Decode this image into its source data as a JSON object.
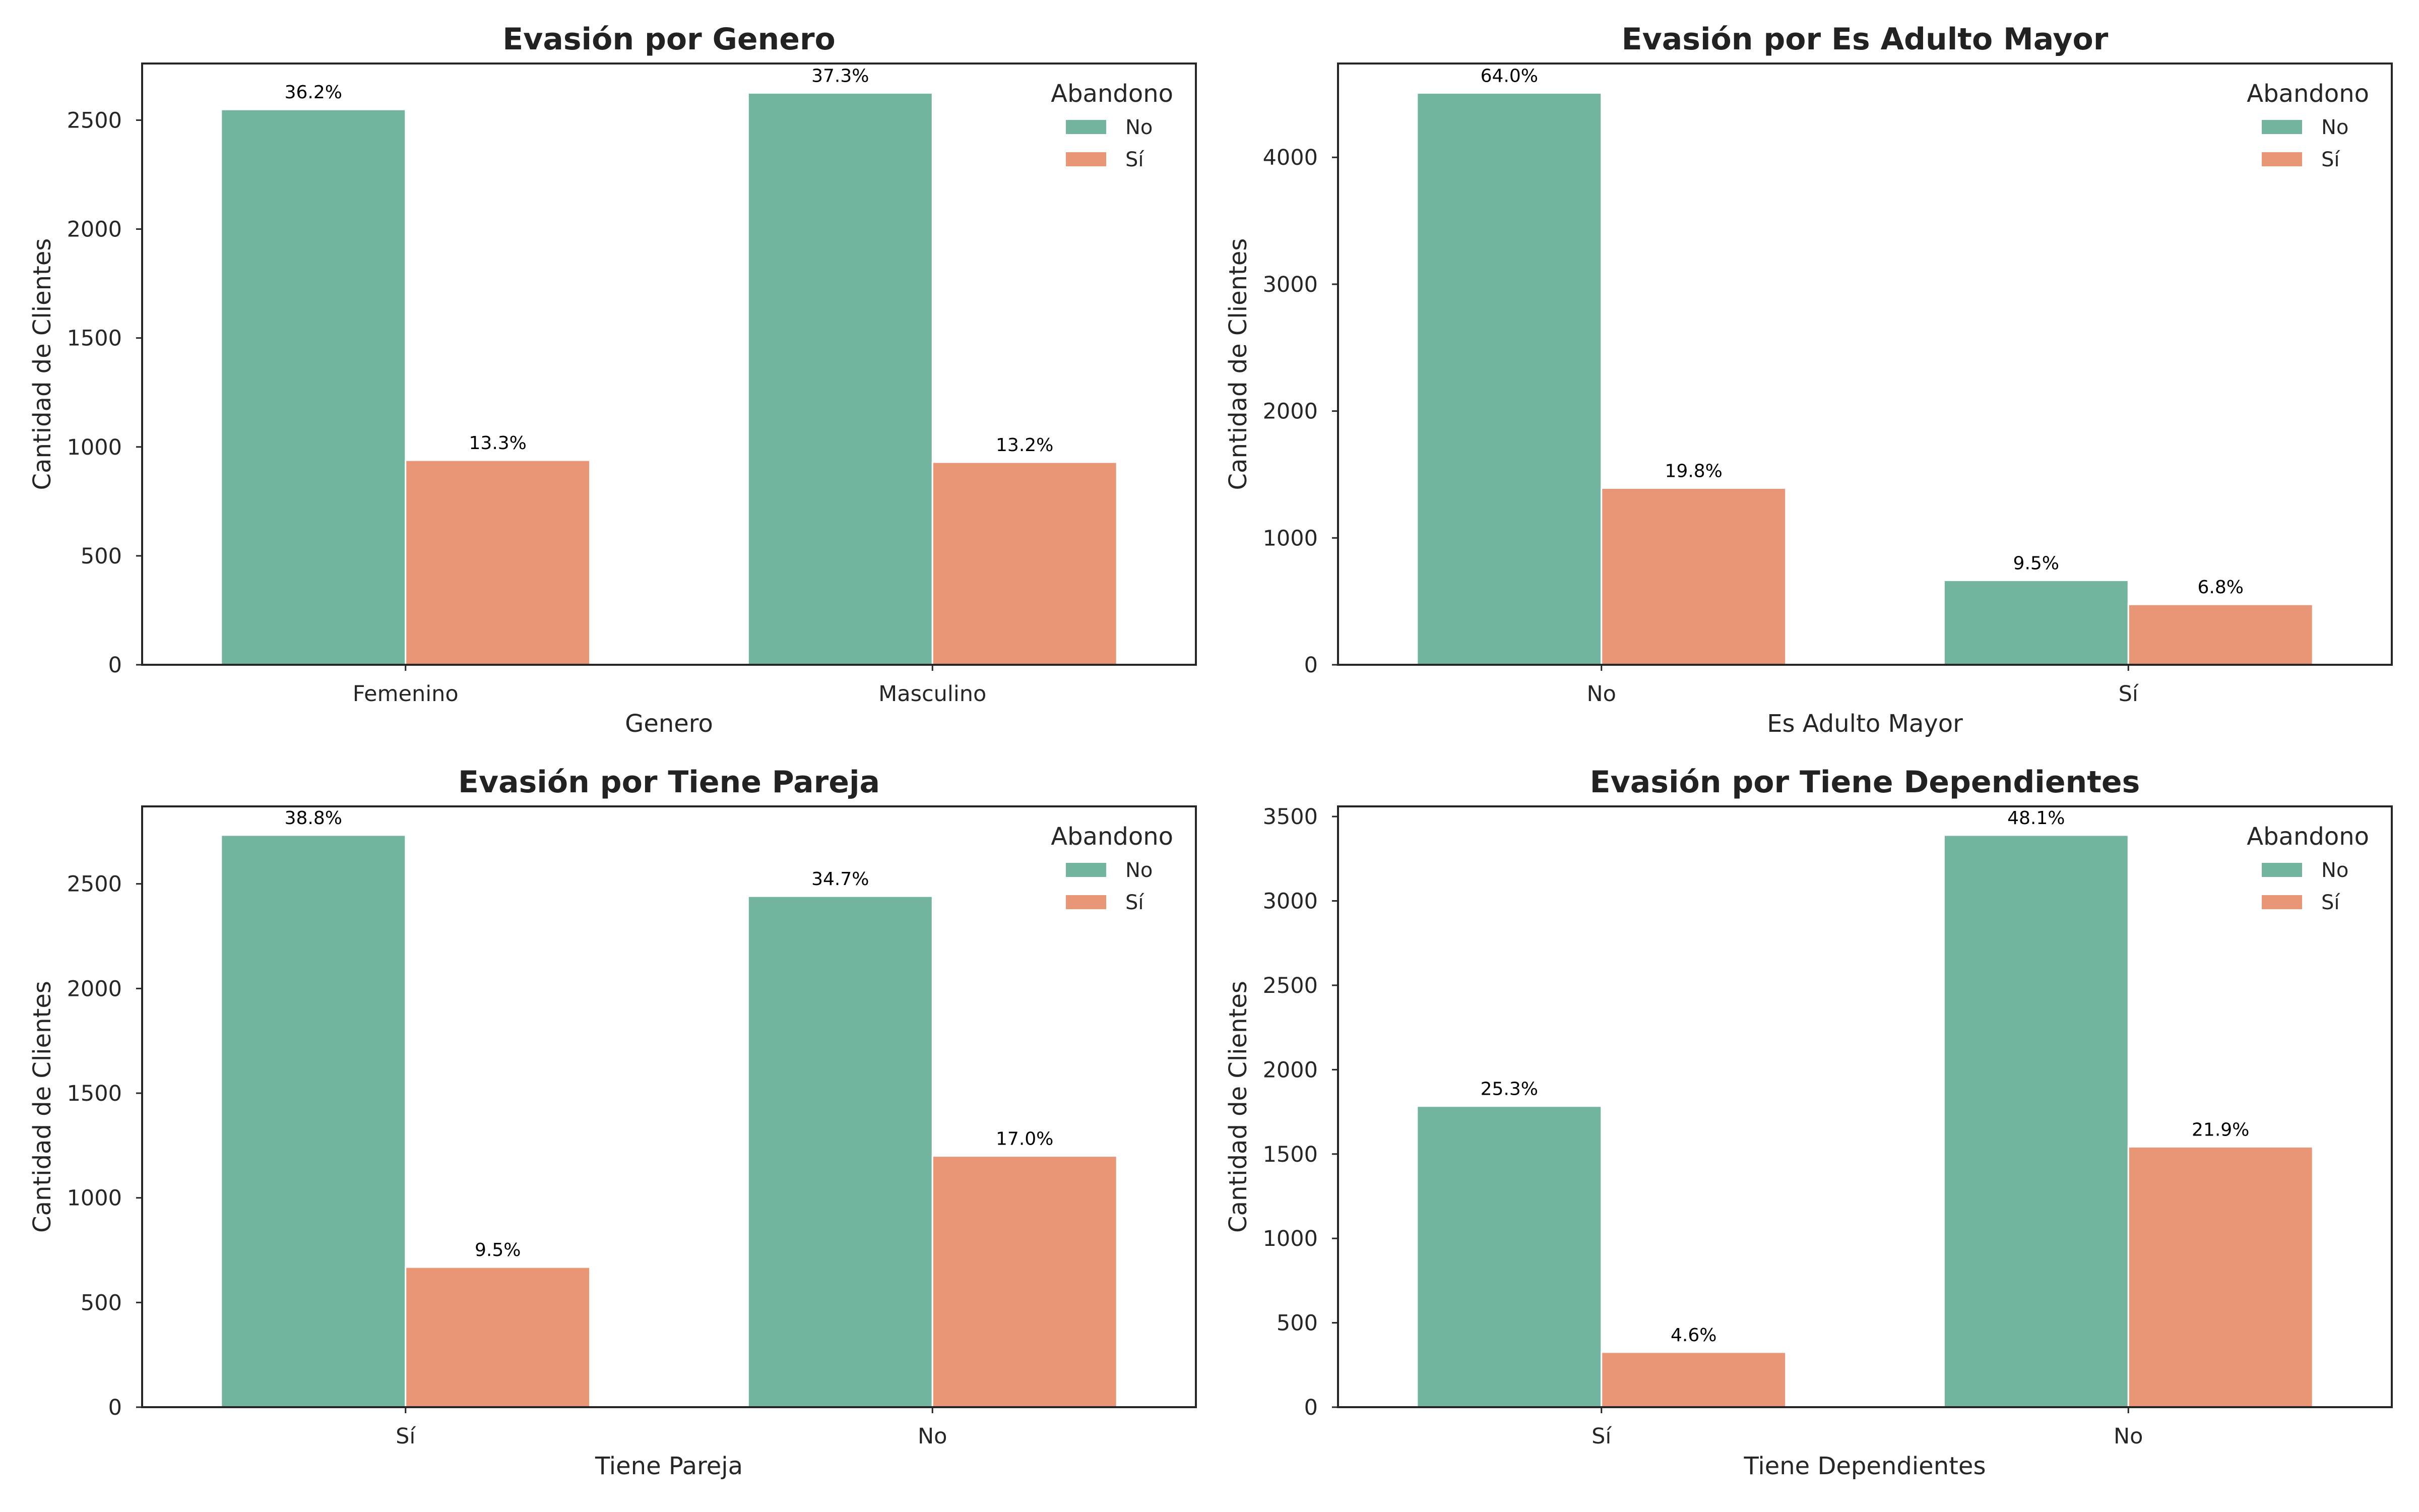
{
  "colors": {
    "No": "#73b49f",
    "Si": "#e89675",
    "axis": "#262626"
  },
  "chart_data": [
    {
      "type": "bar",
      "title": "Evasión por Genero",
      "xlabel": "Genero",
      "ylabel": "Cantidad de Clientes",
      "categories": [
        "Femenino",
        "Masculino"
      ],
      "series": [
        {
          "name": "No",
          "values": [
            2549,
            2625
          ],
          "labels": [
            "36.2%",
            "37.3%"
          ]
        },
        {
          "name": "Sí",
          "values": [
            939,
            930
          ],
          "labels": [
            "13.3%",
            "13.2%"
          ]
        }
      ],
      "ylim": [
        0,
        2760
      ],
      "yticks": [
        0,
        500,
        1000,
        1500,
        2000,
        2500
      ],
      "legend": {
        "title": "Abandono",
        "position": "top-right"
      },
      "grid": false
    },
    {
      "type": "bar",
      "title": "Evasión por Es Adulto Mayor",
      "xlabel": "Es Adulto Mayor",
      "ylabel": "Cantidad de Clientes",
      "categories": [
        "No",
        "Sí"
      ],
      "series": [
        {
          "name": "No",
          "values": [
            4508,
            666
          ],
          "labels": [
            "64.0%",
            "9.5%"
          ]
        },
        {
          "name": "Sí",
          "values": [
            1393,
            476
          ],
          "labels": [
            "19.8%",
            "6.8%"
          ]
        }
      ],
      "ylim": [
        0,
        4740
      ],
      "yticks": [
        0,
        1000,
        2000,
        3000,
        4000
      ],
      "legend": {
        "title": "Abandono",
        "position": "top-right"
      },
      "grid": false
    },
    {
      "type": "bar",
      "title": "Evasión por Tiene Pareja",
      "xlabel": "Tiene Pareja",
      "ylabel": "Cantidad de Clientes",
      "categories": [
        "Sí",
        "No"
      ],
      "series": [
        {
          "name": "No",
          "values": [
            2733,
            2441
          ],
          "labels": [
            "38.8%",
            "34.7%"
          ]
        },
        {
          "name": "Sí",
          "values": [
            669,
            1200
          ],
          "labels": [
            "9.5%",
            "17.0%"
          ]
        }
      ],
      "ylim": [
        0,
        2870
      ],
      "yticks": [
        0,
        500,
        1000,
        1500,
        2000,
        2500
      ],
      "legend": {
        "title": "Abandono",
        "position": "top-right"
      },
      "grid": false
    },
    {
      "type": "bar",
      "title": "Evasión por Tiene Dependientes",
      "xlabel": "Tiene Dependientes",
      "ylabel": "Cantidad de Clientes",
      "categories": [
        "Sí",
        "No"
      ],
      "series": [
        {
          "name": "No",
          "values": [
            1784,
            3390
          ],
          "labels": [
            "25.3%",
            "48.1%"
          ]
        },
        {
          "name": "Sí",
          "values": [
            326,
            1543
          ],
          "labels": [
            "4.6%",
            "21.9%"
          ]
        }
      ],
      "ylim": [
        0,
        3560
      ],
      "yticks": [
        0,
        500,
        1000,
        1500,
        2000,
        2500,
        3000,
        3500
      ],
      "legend": {
        "title": "Abandono",
        "position": "top-right"
      },
      "grid": false
    }
  ]
}
